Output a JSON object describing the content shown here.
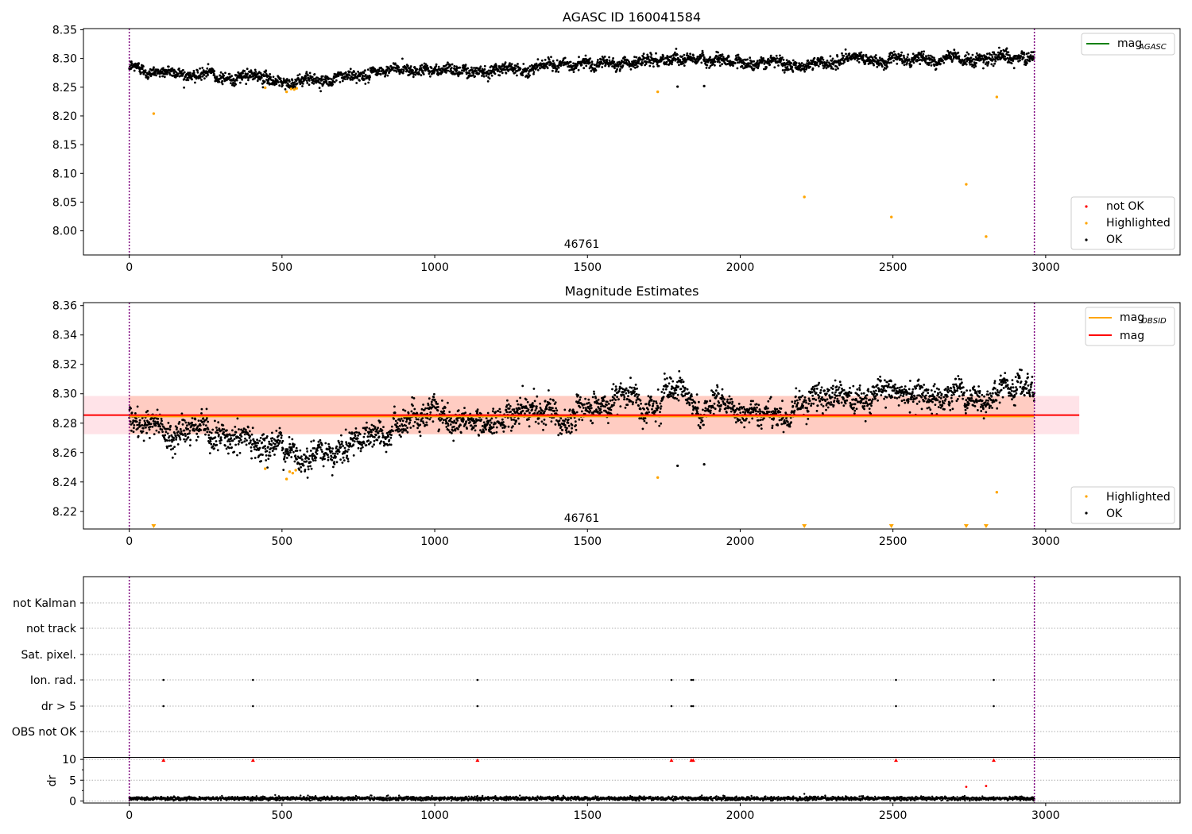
{
  "colors": {
    "ok": "#000000",
    "not_ok": "#ff0000",
    "highlighted": "#ffa500",
    "mag_agasc": "#008000",
    "mag_obsid": "#ffa500",
    "mag": "#ff0000",
    "band_mag": "#ffc0cb",
    "band_obsid": "#ffa07a",
    "obsid_line": "#800080"
  },
  "chart_data": [
    {
      "type": "scatter",
      "title": "AGASC ID 160041584",
      "xlim": [
        -150,
        3440
      ],
      "ylim": [
        7.958,
        8.352
      ],
      "x_ticks": [
        0,
        500,
        1000,
        1500,
        2000,
        2500,
        3000
      ],
      "x_tick_labels": [
        "0",
        "500",
        "1000",
        "1500",
        "2000",
        "2500",
        "3000"
      ],
      "y_ticks": [
        8.0,
        8.05,
        8.1,
        8.15,
        8.2,
        8.25,
        8.3,
        8.35
      ],
      "y_tick_labels": [
        "8.00",
        "8.05",
        "8.10",
        "8.15",
        "8.20",
        "8.25",
        "8.30",
        "8.35"
      ],
      "obsid_bounds": [
        0,
        2963
      ],
      "obsid_label": "46761",
      "obsid_label_x": 1480,
      "n_ok": 2960,
      "ok_trend": [
        [
          0,
          8.283
        ],
        [
          300,
          8.27
        ],
        [
          520,
          8.262
        ],
        [
          700,
          8.265
        ],
        [
          900,
          8.282
        ],
        [
          1200,
          8.284
        ],
        [
          1400,
          8.288
        ],
        [
          1700,
          8.295
        ],
        [
          1950,
          8.3
        ],
        [
          2100,
          8.29
        ],
        [
          2400,
          8.297
        ],
        [
          2700,
          8.298
        ],
        [
          2963,
          8.3
        ]
      ],
      "ok_scatter_sd": 0.0085,
      "ok_outliers": [
        [
          1795,
          8.251
        ],
        [
          1882,
          8.252
        ]
      ],
      "highlighted": [
        [
          80,
          8.204
        ],
        [
          445,
          8.249
        ],
        [
          515,
          8.242
        ],
        [
          530,
          8.247
        ],
        [
          540,
          8.246
        ],
        [
          548,
          8.248
        ],
        [
          1730,
          8.242
        ],
        [
          2210,
          8.059
        ],
        [
          2495,
          8.024
        ],
        [
          2740,
          8.081
        ],
        [
          2805,
          7.99
        ],
        [
          2840,
          8.233
        ]
      ],
      "legend_lines": [
        {
          "label": "mag",
          "sub": "AGASC"
        }
      ],
      "legend_points": [
        {
          "label": "not OK"
        },
        {
          "label": "Highlighted"
        },
        {
          "label": "OK"
        }
      ]
    },
    {
      "type": "scatter",
      "title": "Magnitude Estimates",
      "xlim": [
        -150,
        3440
      ],
      "ylim": [
        8.208,
        8.362
      ],
      "x_ticks": [
        0,
        500,
        1000,
        1500,
        2000,
        2500,
        3000
      ],
      "x_tick_labels": [
        "0",
        "500",
        "1000",
        "1500",
        "2000",
        "2500",
        "3000"
      ],
      "y_ticks": [
        8.22,
        8.24,
        8.26,
        8.28,
        8.3,
        8.32,
        8.34,
        8.36
      ],
      "y_tick_labels": [
        "8.22",
        "8.24",
        "8.26",
        "8.28",
        "8.30",
        "8.32",
        "8.34",
        "8.36"
      ],
      "obsid_bounds": [
        0,
        2963
      ],
      "obsid_label": "46761",
      "obsid_label_x": 1480,
      "mag": 8.2855,
      "mag_obsid": 8.2845,
      "band_mag": [
        8.2725,
        8.2985
      ],
      "band_mag_x": [
        -150,
        3110
      ],
      "band_obsid": [
        8.2725,
        8.2985
      ],
      "band_obsid_x": [
        0,
        2963
      ],
      "n_ok": 2960,
      "ok_trend": [
        [
          0,
          8.283
        ],
        [
          250,
          8.275
        ],
        [
          400,
          8.268
        ],
        [
          520,
          8.258
        ],
        [
          650,
          8.263
        ],
        [
          900,
          8.281
        ],
        [
          1200,
          8.284
        ],
        [
          1420,
          8.29
        ],
        [
          1700,
          8.294
        ],
        [
          1950,
          8.299
        ],
        [
          2100,
          8.287
        ],
        [
          2400,
          8.296
        ],
        [
          2700,
          8.298
        ],
        [
          2963,
          8.301
        ]
      ],
      "ok_scatter_sd": 0.0075,
      "ok_outliers": [
        [
          1795,
          8.251
        ],
        [
          1882,
          8.252
        ]
      ],
      "highlighted": [
        [
          445,
          8.249
        ],
        [
          515,
          8.242
        ],
        [
          525,
          8.247
        ],
        [
          535,
          8.246
        ],
        [
          545,
          8.248
        ],
        [
          1730,
          8.243
        ],
        [
          2840,
          8.233
        ]
      ],
      "clipped_highlighted_x": [
        80,
        2210,
        2495,
        2740,
        2805
      ],
      "legend_lines": [
        {
          "label": "mag",
          "sub": "OBSID"
        },
        {
          "label": "mag",
          "sub": ""
        }
      ],
      "legend_points": [
        {
          "label": "Highlighted"
        },
        {
          "label": "OK"
        }
      ]
    },
    {
      "type": "scatter",
      "title": "",
      "xlim": [
        -150,
        3440
      ],
      "x_ticks": [
        0,
        500,
        1000,
        1500,
        2000,
        2500,
        3000
      ],
      "x_tick_labels": [
        "0",
        "500",
        "1000",
        "1500",
        "2000",
        "2500",
        "3000"
      ],
      "obsid_bounds": [
        0,
        2963
      ],
      "flag_rows": [
        "not Kalman",
        "not track",
        "Sat. pixel.",
        "Ion. rad.",
        "dr > 5",
        "OBS not OK"
      ],
      "flag_events": {
        "Ion. rad.": [
          112,
          405,
          1140,
          1775,
          1840,
          1846,
          2510,
          2830
        ],
        "dr > 5": [
          112,
          405,
          1140,
          1775,
          1840,
          1846,
          2510,
          2830
        ]
      },
      "dr": {
        "ylabel": "dr",
        "ylim": [
          -0.5,
          10.5
        ],
        "y_ticks": [
          0,
          5,
          10
        ],
        "y_tick_labels": [
          "0",
          "5",
          "10"
        ],
        "n_ok": 2960,
        "ok_level": 0.6,
        "ok_scatter_sd": 0.22,
        "clipped_not_ok_x": [
          112,
          405,
          1140,
          1775,
          1840,
          1846,
          2510,
          2830
        ],
        "not_ok_points": [
          [
            2740,
            3.4
          ],
          [
            2805,
            3.6
          ]
        ],
        "ok_outliers": [
          [
            2210,
            1.7
          ]
        ]
      }
    }
  ]
}
